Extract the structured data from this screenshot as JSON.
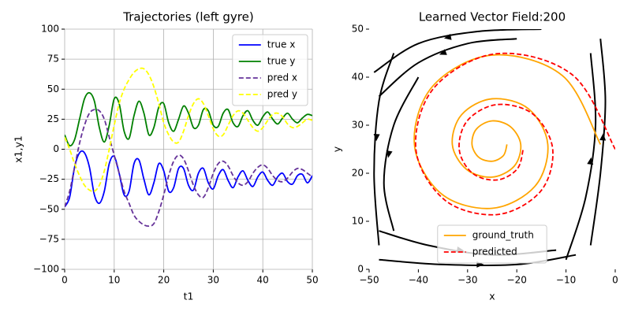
{
  "chart_data": [
    {
      "type": "line",
      "title": "Trajectories (left gyre)",
      "xlabel": "t1",
      "ylabel": "x1,y1",
      "xlim": [
        0,
        50
      ],
      "ylim": [
        -100,
        100
      ],
      "xticks": [
        0,
        10,
        20,
        30,
        40,
        50
      ],
      "yticks": [
        {
          "value": -100,
          "label": "−100"
        },
        {
          "value": -75,
          "label": "−75"
        },
        {
          "value": -50,
          "label": "−50"
        },
        {
          "value": -25,
          "label": "−25"
        },
        0,
        25,
        50,
        75,
        100
      ],
      "grid": true,
      "legend": "upper right",
      "x": [
        0,
        1,
        2,
        3,
        4,
        5,
        6,
        7,
        8,
        9,
        10,
        11,
        12,
        13,
        14,
        15,
        16,
        17,
        18,
        19,
        20,
        21,
        22,
        23,
        24,
        25,
        26,
        27,
        28,
        29,
        30,
        31,
        32,
        33,
        34,
        35,
        36,
        37,
        38,
        39,
        40,
        41,
        42,
        43,
        44,
        45,
        46,
        47,
        48,
        49,
        50
      ],
      "series": [
        {
          "name": "true x",
          "color": "#0000ff",
          "linestyle": "solid",
          "values": [
            -48,
            -40,
            -15,
            -3,
            -3,
            -15,
            -38,
            -45,
            -35,
            -12,
            -6,
            -20,
            -38,
            -35,
            -12,
            -9,
            -25,
            -38,
            -28,
            -12,
            -18,
            -35,
            -32,
            -16,
            -16,
            -30,
            -34,
            -20,
            -16,
            -28,
            -33,
            -22,
            -17,
            -26,
            -32,
            -23,
            -18,
            -26,
            -31,
            -23,
            -19,
            -26,
            -30,
            -23,
            -20,
            -27,
            -29,
            -22,
            -21,
            -28,
            -22
          ]
        },
        {
          "name": "true y",
          "color": "#008000",
          "linestyle": "solid",
          "values": [
            12,
            3,
            8,
            25,
            42,
            47,
            40,
            18,
            6,
            20,
            42,
            38,
            15,
            9,
            28,
            40,
            30,
            12,
            18,
            35,
            38,
            22,
            15,
            25,
            36,
            30,
            18,
            20,
            33,
            32,
            20,
            19,
            30,
            33,
            22,
            19,
            28,
            32,
            24,
            20,
            27,
            31,
            25,
            21,
            26,
            30,
            25,
            22,
            26,
            29,
            28
          ]
        },
        {
          "name": "pred x",
          "color": "#663399",
          "linestyle": "dashed",
          "values": [
            -48,
            -35,
            -15,
            5,
            20,
            30,
            33,
            32,
            25,
            10,
            -5,
            -20,
            -35,
            -45,
            -55,
            -60,
            -63,
            -64,
            -62,
            -52,
            -38,
            -22,
            -10,
            -5,
            -8,
            -18,
            -30,
            -38,
            -40,
            -32,
            -20,
            -12,
            -10,
            -14,
            -22,
            -28,
            -30,
            -27,
            -20,
            -15,
            -13,
            -16,
            -22,
            -26,
            -27,
            -24,
            -19,
            -16,
            -17,
            -20,
            -23
          ]
        },
        {
          "name": "pred y",
          "color": "#ffff00",
          "linestyle": "dashed",
          "values": [
            10,
            0,
            -12,
            -22,
            -30,
            -34,
            -35,
            -30,
            -18,
            0,
            20,
            38,
            50,
            58,
            64,
            67,
            67,
            62,
            52,
            38,
            22,
            12,
            6,
            6,
            15,
            28,
            38,
            42,
            38,
            28,
            17,
            11,
            12,
            20,
            28,
            32,
            30,
            24,
            18,
            15,
            18,
            24,
            29,
            30,
            27,
            21,
            18,
            19,
            22,
            25,
            24
          ]
        }
      ]
    },
    {
      "type": "vector_field",
      "title": "Learned Vector Field:200",
      "xlabel": "x",
      "ylabel": "y",
      "xlim": [
        -50,
        0
      ],
      "ylim": [
        0,
        50
      ],
      "xticks": [
        {
          "value": -50,
          "label": "−50"
        },
        {
          "value": -40,
          "label": "−40"
        },
        {
          "value": -30,
          "label": "−30"
        },
        {
          "value": -20,
          "label": "−20"
        },
        {
          "value": -10,
          "label": "−10"
        },
        0
      ],
      "yticks": [
        0,
        10,
        20,
        30,
        40,
        50
      ],
      "grid": false,
      "legend": "lower center",
      "streamline_color": "#000000",
      "streamlines": [
        {
          "x": [
            -20,
            -30,
            -40,
            -48
          ],
          "y": [
            48,
            47,
            43,
            36
          ]
        },
        {
          "x": [
            -15,
            -28,
            -40,
            -49
          ],
          "y": [
            50,
            49.5,
            47,
            41
          ]
        },
        {
          "x": [
            -5,
            -3,
            -2,
            -3
          ],
          "y": [
            5,
            20,
            35,
            48
          ]
        },
        {
          "x": [
            -10,
            -6,
            -4,
            -5
          ],
          "y": [
            2,
            15,
            30,
            45
          ]
        },
        {
          "x": [
            -48,
            -35,
            -20,
            -8
          ],
          "y": [
            2,
            1,
            1,
            3
          ]
        },
        {
          "x": [
            -48,
            -38,
            -25,
            -12
          ],
          "y": [
            8,
            5,
            3,
            4
          ]
        },
        {
          "x": [
            -45,
            -48,
            -49,
            -48
          ],
          "y": [
            45,
            35,
            20,
            5
          ]
        },
        {
          "x": [
            -40,
            -45,
            -47,
            -45
          ],
          "y": [
            40,
            30,
            18,
            8
          ]
        }
      ],
      "series": [
        {
          "name": "ground_truth",
          "color": "#ffa500",
          "linestyle": "solid",
          "x": [
            -3,
            -10.7,
            -25,
            -37.1,
            -40.8,
            -35.3,
            -25,
            -16.3,
            -13.7,
            -17.6,
            -25,
            -31.2,
            -33.1,
            -30.2,
            -25,
            -20.5,
            -19.2,
            -21.3,
            -25,
            -28.2,
            -29.1,
            -27.7,
            -25,
            -22.7,
            -22
          ],
          "y": [
            26,
            40.3,
            44.6,
            38.1,
            26,
            15.7,
            12.7,
            17.3,
            26,
            33.4,
            35.5,
            32.2,
            26,
            20.8,
            19.2,
            21.5,
            26,
            29.7,
            30.9,
            29.2,
            26,
            23.3,
            22.5,
            23.7,
            26
          ]
        },
        {
          "name": "predicted",
          "color": "#ff0000",
          "linestyle": "dashed",
          "x": [
            0,
            -8.6,
            -24,
            -36.8,
            -40.5,
            -34.6,
            -24,
            -15.2,
            -12.7,
            -16.7,
            -24,
            -30,
            -31.7,
            -29,
            -24,
            -19.9,
            -18.7
          ],
          "y": [
            25,
            40.4,
            44.9,
            37.8,
            25,
            14.4,
            11.4,
            16.2,
            25,
            32.3,
            34.3,
            31,
            25,
            20,
            18.6,
            20.9,
            25
          ]
        }
      ]
    }
  ]
}
